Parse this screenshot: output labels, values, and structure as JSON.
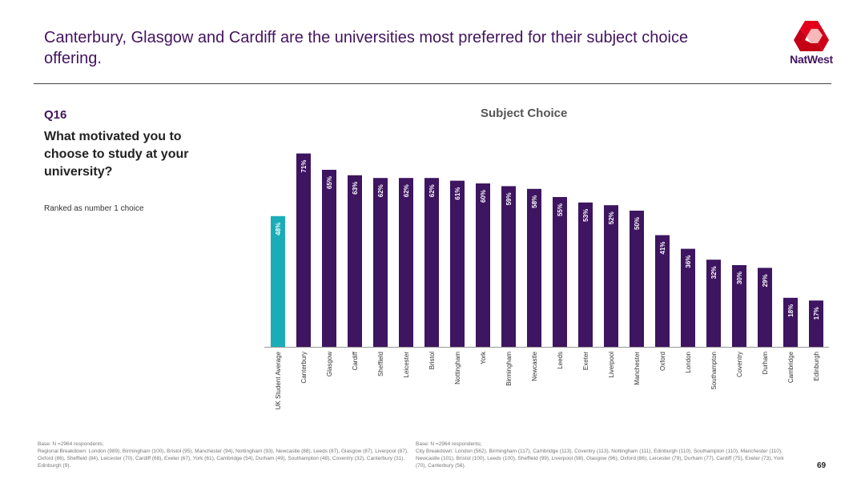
{
  "header": {
    "title": "Canterbury, Glasgow and Cardiff are the universities most preferred for their subject choice offering.",
    "logo_text": "NatWest"
  },
  "question": {
    "number": "Q16",
    "text": "What motivated you to choose to study at your university?",
    "note": "Ranked as number 1 choice"
  },
  "colors": {
    "average": "#1aadb8",
    "bars": "#3e1560",
    "logo": "#e2001a",
    "title": "#42145f"
  },
  "chart_data": {
    "type": "bar",
    "title": "Subject Choice",
    "categories": [
      "UK Student Average",
      "Canterbury",
      "Glasgow",
      "Cardiff",
      "Sheffield",
      "Leicester",
      "Bristol",
      "Nottingham",
      "York",
      "Birmingham",
      "Newcastle",
      "Leeds",
      "Exeter",
      "Liverpool",
      "Manchester",
      "Oxford",
      "London",
      "Southampton",
      "Coventry",
      "Durham",
      "Cambridge",
      "Edinburgh"
    ],
    "values": [
      48,
      71,
      65,
      63,
      62,
      62,
      62,
      61,
      60,
      59,
      58,
      55,
      53,
      52,
      50,
      41,
      36,
      32,
      30,
      29,
      18,
      17
    ],
    "value_labels": [
      "48%",
      "71%",
      "65%",
      "63%",
      "62%",
      "62%",
      "62%",
      "61%",
      "60%",
      "59%",
      "58%",
      "55%",
      "53%",
      "52%",
      "50%",
      "41%",
      "36%",
      "32%",
      "30%",
      "29%",
      "18%",
      "17%"
    ],
    "ylim": [
      0,
      100
    ],
    "grid": false,
    "xlabel": "",
    "ylabel": ""
  },
  "footnotes": {
    "left": {
      "base": "Base: N =2964 respondents;",
      "text": "Regional Breakdown: London (989), Birmingham (100), Bristol (95), Manchester (94), Nottingham (93), Newcastle (88), Leeds (87), Glasgow (87), Liverpool (87), Oxford (86), Sheffield (84), Leicester (70), Cardiff (68), Exeter (67), York (61), Cambridge (54), Durham (49), Southampton (48), Coventry (32), Canterbury (31), Edinburgh (9)."
    },
    "right": {
      "base": "Base: N =2964 respondents;",
      "text": "City Breakdown: London (562), Birmingham (117), Cambridge (113), Coventry (113), Nottingham (111), Edinburgh (110), Southampton (110), Manchester (110), Newcastle (101), Bristol (100), Leeds (100), Sheffield (99), Liverpool (98), Glasgow (96), Oxford (86), Leicester (79), Durham (77), Cardiff (75), Exeter (73), York (70), Canterbury (56)."
    }
  },
  "page_number": "69"
}
